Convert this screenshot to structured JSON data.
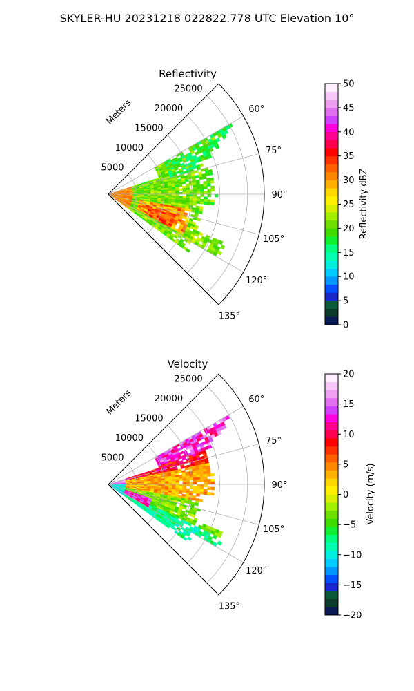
{
  "suptitle": "SKYLER-HU  20231218  022822.778 UTC Elevation 10°",
  "chart_data": [
    {
      "type": "heatmap",
      "projection": "polar-sector",
      "title": "Reflectivity",
      "radial_label": "Meters",
      "radial_ticks": [
        5000,
        10000,
        15000,
        20000,
        25000
      ],
      "radial_tick_labels": [
        "5000",
        "10000",
        "15000",
        "20000",
        "25000"
      ],
      "rlim": [
        0,
        28000
      ],
      "azimuth_ticks": [
        60,
        75,
        90,
        105,
        120,
        135
      ],
      "azimuth_tick_labels": [
        "60°",
        "75°",
        "90°",
        "105°",
        "120°",
        "135°"
      ],
      "azimuth_range": [
        45,
        135
      ],
      "grid": true,
      "colorbar": {
        "label": "Reflectivity dBZ",
        "range": [
          0,
          50
        ],
        "ticks": [
          0,
          5,
          10,
          15,
          20,
          25,
          30,
          35,
          40,
          45,
          50
        ],
        "tick_labels": [
          "0",
          "5",
          "10",
          "15",
          "20",
          "25",
          "30",
          "35",
          "40",
          "45",
          "50"
        ],
        "colors": [
          "#0a1a55",
          "#0b3a2a",
          "#0a5a3a",
          "#1a28c8",
          "#0050ff",
          "#0098ff",
          "#00ccff",
          "#00f0e0",
          "#00ffb0",
          "#00ff80",
          "#10f030",
          "#40dc00",
          "#70e000",
          "#a0f000",
          "#d8f000",
          "#fff000",
          "#ffd800",
          "#ffb000",
          "#ff8800",
          "#ff6000",
          "#ff3000",
          "#ff0000",
          "#ff0050",
          "#ff0090",
          "#ff00e0",
          "#d040ff",
          "#e070f0",
          "#f0a0f0",
          "#f8c8f8",
          "#fff0ff"
        ]
      },
      "field_note_values": {
        "near_range_dbz": 30,
        "main_region_dbz": 20,
        "peak_dbz": 35
      }
    },
    {
      "type": "heatmap",
      "projection": "polar-sector",
      "title": "Velocity",
      "radial_label": "Meters",
      "radial_ticks": [
        5000,
        10000,
        15000,
        20000,
        25000
      ],
      "radial_tick_labels": [
        "5000",
        "10000",
        "15000",
        "20000",
        "25000"
      ],
      "rlim": [
        0,
        28000
      ],
      "azimuth_ticks": [
        60,
        75,
        90,
        105,
        120,
        135
      ],
      "azimuth_tick_labels": [
        "60°",
        "75°",
        "90°",
        "105°",
        "120°",
        "135°"
      ],
      "azimuth_range": [
        45,
        135
      ],
      "grid": true,
      "colorbar": {
        "label": "Velocity (m/s)",
        "range": [
          -20,
          20
        ],
        "ticks": [
          -20,
          -15,
          -10,
          -5,
          0,
          5,
          10,
          15,
          20
        ],
        "tick_labels": [
          "−20",
          "−15",
          "−10",
          "−5",
          "0",
          "5",
          "10",
          "15",
          "20"
        ],
        "colors": [
          "#0a1a55",
          "#0b3a2a",
          "#0a5a3a",
          "#1a28c8",
          "#0050ff",
          "#0098ff",
          "#00ccff",
          "#00f0e0",
          "#00ffb0",
          "#00ff80",
          "#10f030",
          "#40dc00",
          "#70e000",
          "#a0f000",
          "#d8f000",
          "#fff000",
          "#ffd800",
          "#ffb000",
          "#ff8800",
          "#ff6000",
          "#ff3000",
          "#ff0000",
          "#ff0050",
          "#ff0090",
          "#ff00e0",
          "#d040ff",
          "#e070f0",
          "#f0a0f0",
          "#f8c8f8",
          "#fff0ff"
        ]
      }
    }
  ]
}
